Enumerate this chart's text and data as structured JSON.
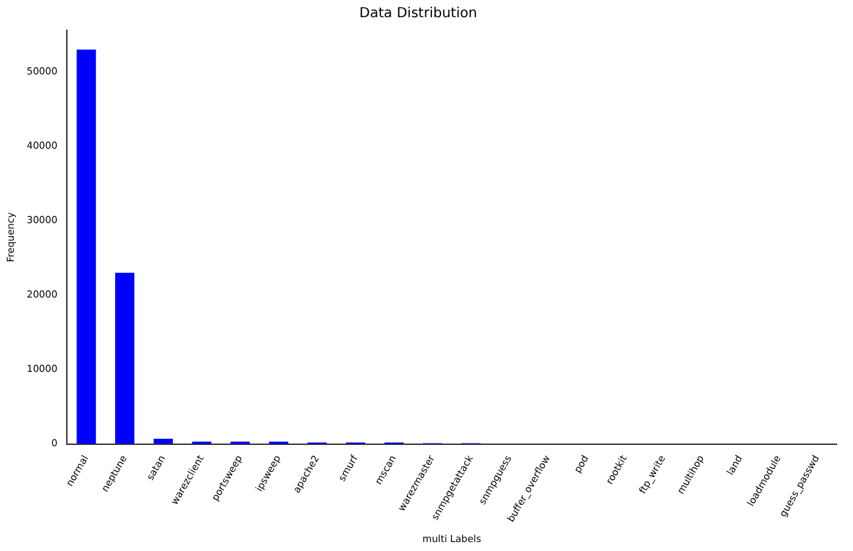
{
  "chart_data": {
    "type": "bar",
    "title": "Data Distribution",
    "xlabel": "multi Labels",
    "ylabel": "Frequency",
    "categories": [
      "normal",
      "neptune",
      "satan",
      "warezclient",
      "portsweep",
      "ipsweep",
      "apache2",
      "smurf",
      "mscan",
      "warezmaster",
      "snmpgetattack",
      "snmpguess",
      "buffer_overflow",
      "pod",
      "rootkit",
      "ftp_write",
      "multihop",
      "land",
      "loadmodule",
      "guess_passwd"
    ],
    "values": [
      53000,
      23000,
      700,
      300,
      300,
      300,
      200,
      200,
      200,
      100,
      100,
      0,
      0,
      0,
      0,
      0,
      0,
      0,
      0,
      0
    ],
    "color": "#0000ff",
    "ylim": [
      0,
      55600
    ],
    "yticks": [
      0,
      10000,
      20000,
      30000,
      40000,
      50000
    ],
    "grid": false,
    "legend": false
  }
}
